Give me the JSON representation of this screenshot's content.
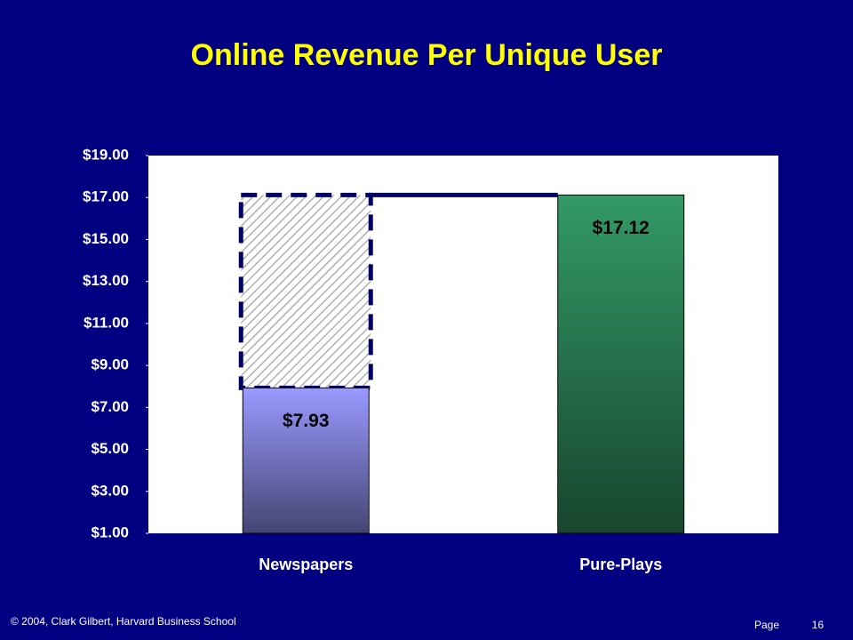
{
  "chart_data": {
    "type": "bar",
    "title": "Online Revenue Per Unique User",
    "categories": [
      "Newspapers",
      "Pure-Plays"
    ],
    "values": [
      7.93,
      17.12
    ],
    "value_labels": [
      "$7.93",
      "$17.12"
    ],
    "colors": [
      "#9999ff",
      "#339966"
    ],
    "ylim": [
      1,
      19
    ],
    "yticks": [
      {
        "value": 1,
        "label": "$1.00"
      },
      {
        "value": 3,
        "label": "$3.00"
      },
      {
        "value": 5,
        "label": "$5.00"
      },
      {
        "value": 7,
        "label": "$7.00"
      },
      {
        "value": 9,
        "label": "$9.00"
      },
      {
        "value": 11,
        "label": "$11.00"
      },
      {
        "value": 13,
        "label": "$13.00"
      },
      {
        "value": 15,
        "label": "$15.00"
      },
      {
        "value": 17,
        "label": "$17.00"
      },
      {
        "value": 19,
        "label": "$19.00"
      }
    ]
  },
  "footer": {
    "copyright": "© 2004, Clark Gilbert, Harvard Business School",
    "page_label": "Page",
    "page_number": "16"
  }
}
